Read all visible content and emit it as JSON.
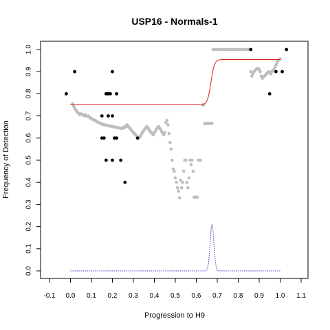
{
  "chart_data": {
    "type": "scatter",
    "title": "USP16 - Normals-1",
    "xlabel": "Progression to H9",
    "ylabel": "Frequency of Detection",
    "xlim": [
      -0.1,
      1.1
    ],
    "ylim": [
      0,
      1.0
    ],
    "x_ticks": [
      "-0.1",
      "0.0",
      "0.1",
      "0.2",
      "0.3",
      "0.4",
      "0.5",
      "0.6",
      "0.7",
      "0.8",
      "0.9",
      "1.0",
      "1.1"
    ],
    "y_ticks": [
      "0.0",
      "0.1",
      "0.2",
      "0.3",
      "0.4",
      "0.5",
      "0.6",
      "0.7",
      "0.8",
      "0.9",
      "1.0"
    ],
    "grid": false,
    "series": [
      {
        "kind": "points-black",
        "color": "#000000",
        "points": [
          [
            -0.02,
            0.8
          ],
          [
            0.02,
            0.9
          ],
          [
            0.15,
            0.7
          ],
          [
            0.15,
            0.6
          ],
          [
            0.16,
            0.6
          ],
          [
            0.17,
            0.8
          ],
          [
            0.17,
            0.5
          ],
          [
            0.18,
            0.8
          ],
          [
            0.18,
            0.7
          ],
          [
            0.19,
            0.8
          ],
          [
            0.2,
            0.9
          ],
          [
            0.2,
            0.7
          ],
          [
            0.2,
            0.5
          ],
          [
            0.21,
            0.6
          ],
          [
            0.22,
            0.8
          ],
          [
            0.22,
            0.6
          ],
          [
            0.24,
            0.5
          ],
          [
            0.26,
            0.4
          ],
          [
            0.32,
            0.6
          ],
          [
            0.86,
            1.0
          ],
          [
            0.95,
            0.8
          ],
          [
            0.98,
            0.9
          ],
          [
            1.01,
            0.9
          ],
          [
            1.03,
            1.0
          ]
        ]
      },
      {
        "kind": "points-gray",
        "color": "#bebebe",
        "points": [
          [
            0.01,
            0.755
          ],
          [
            0.015,
            0.745
          ],
          [
            0.02,
            0.735
          ],
          [
            0.025,
            0.728
          ],
          [
            0.03,
            0.72
          ],
          [
            0.035,
            0.715
          ],
          [
            0.04,
            0.71
          ],
          [
            0.045,
            0.705
          ],
          [
            0.05,
            0.71
          ],
          [
            0.055,
            0.708
          ],
          [
            0.06,
            0.705
          ],
          [
            0.065,
            0.7
          ],
          [
            0.07,
            0.705
          ],
          [
            0.075,
            0.7
          ],
          [
            0.08,
            0.698
          ],
          [
            0.085,
            0.7
          ],
          [
            0.09,
            0.695
          ],
          [
            0.095,
            0.69
          ],
          [
            0.1,
            0.688
          ],
          [
            0.105,
            0.685
          ],
          [
            0.11,
            0.682
          ],
          [
            0.115,
            0.68
          ],
          [
            0.12,
            0.678
          ],
          [
            0.125,
            0.675
          ],
          [
            0.13,
            0.672
          ],
          [
            0.135,
            0.67
          ],
          [
            0.14,
            0.668
          ],
          [
            0.145,
            0.665
          ],
          [
            0.15,
            0.663
          ],
          [
            0.155,
            0.662
          ],
          [
            0.16,
            0.66
          ],
          [
            0.165,
            0.659
          ],
          [
            0.17,
            0.658
          ],
          [
            0.175,
            0.657
          ],
          [
            0.18,
            0.656
          ],
          [
            0.185,
            0.655
          ],
          [
            0.19,
            0.654
          ],
          [
            0.195,
            0.653
          ],
          [
            0.2,
            0.652
          ],
          [
            0.205,
            0.651
          ],
          [
            0.21,
            0.65
          ],
          [
            0.215,
            0.649
          ],
          [
            0.22,
            0.648
          ],
          [
            0.225,
            0.647
          ],
          [
            0.23,
            0.646
          ],
          [
            0.235,
            0.645
          ],
          [
            0.24,
            0.644
          ],
          [
            0.245,
            0.643
          ],
          [
            0.25,
            0.645
          ],
          [
            0.255,
            0.65
          ],
          [
            0.26,
            0.648
          ],
          [
            0.265,
            0.655
          ],
          [
            0.27,
            0.66
          ],
          [
            0.275,
            0.652
          ],
          [
            0.28,
            0.648
          ],
          [
            0.285,
            0.642
          ],
          [
            0.29,
            0.636
          ],
          [
            0.295,
            0.63
          ],
          [
            0.3,
            0.625
          ],
          [
            0.305,
            0.62
          ],
          [
            0.31,
            0.615
          ],
          [
            0.315,
            0.61
          ],
          [
            0.32,
            0.605
          ],
          [
            0.325,
            0.6
          ],
          [
            0.33,
            0.605
          ],
          [
            0.335,
            0.61
          ],
          [
            0.34,
            0.62
          ],
          [
            0.345,
            0.628
          ],
          [
            0.35,
            0.635
          ],
          [
            0.355,
            0.642
          ],
          [
            0.36,
            0.648
          ],
          [
            0.365,
            0.652
          ],
          [
            0.37,
            0.645
          ],
          [
            0.375,
            0.638
          ],
          [
            0.38,
            0.63
          ],
          [
            0.385,
            0.625
          ],
          [
            0.39,
            0.62
          ],
          [
            0.395,
            0.615
          ],
          [
            0.4,
            0.625
          ],
          [
            0.405,
            0.632
          ],
          [
            0.41,
            0.64
          ],
          [
            0.415,
            0.646
          ],
          [
            0.42,
            0.652
          ],
          [
            0.425,
            0.645
          ],
          [
            0.43,
            0.638
          ],
          [
            0.435,
            0.63
          ],
          [
            0.44,
            0.62
          ],
          [
            0.445,
            0.615
          ],
          [
            0.45,
            0.625
          ],
          [
            0.455,
            0.67
          ],
          [
            0.46,
            0.68
          ],
          [
            0.465,
            0.66
          ],
          [
            0.47,
            0.62
          ],
          [
            0.475,
            0.58
          ],
          [
            0.48,
            0.55
          ],
          [
            0.485,
            0.5
          ],
          [
            0.49,
            0.46
          ],
          [
            0.495,
            0.45
          ],
          [
            0.5,
            0.42
          ],
          [
            0.505,
            0.4
          ],
          [
            0.51,
            0.375
          ],
          [
            0.515,
            0.36
          ],
          [
            0.52,
            0.33
          ],
          [
            0.525,
            0.41
          ],
          [
            0.53,
            0.375
          ],
          [
            0.535,
            0.4
          ],
          [
            0.54,
            0.45
          ],
          [
            0.545,
            0.5
          ],
          [
            0.55,
            0.5
          ],
          [
            0.555,
            0.4
          ],
          [
            0.56,
            0.375
          ],
          [
            0.565,
            0.42
          ],
          [
            0.57,
            0.5
          ],
          [
            0.575,
            0.48
          ],
          [
            0.58,
            0.5
          ],
          [
            0.585,
            0.45
          ],
          [
            0.59,
            0.333
          ],
          [
            0.595,
            0.333
          ],
          [
            0.6,
            0.333
          ],
          [
            0.605,
            0.333
          ],
          [
            0.61,
            0.5
          ],
          [
            0.615,
            0.5
          ],
          [
            0.62,
            0.5
          ],
          [
            0.63,
            0.75
          ],
          [
            0.635,
            0.75
          ],
          [
            0.64,
            0.666
          ],
          [
            0.645,
            0.666
          ],
          [
            0.65,
            0.666
          ],
          [
            0.655,
            0.666
          ],
          [
            0.66,
            0.666
          ],
          [
            0.665,
            0.666
          ],
          [
            0.67,
            0.666
          ],
          [
            0.675,
            0.666
          ],
          [
            0.68,
            1.0
          ],
          [
            0.69,
            1.0
          ],
          [
            0.7,
            1.0
          ],
          [
            0.71,
            1.0
          ],
          [
            0.72,
            1.0
          ],
          [
            0.73,
            1.0
          ],
          [
            0.74,
            1.0
          ],
          [
            0.75,
            1.0
          ],
          [
            0.76,
            1.0
          ],
          [
            0.77,
            1.0
          ],
          [
            0.78,
            1.0
          ],
          [
            0.79,
            1.0
          ],
          [
            0.8,
            1.0
          ],
          [
            0.81,
            1.0
          ],
          [
            0.82,
            1.0
          ],
          [
            0.83,
            1.0
          ],
          [
            0.84,
            1.0
          ],
          [
            0.85,
            1.0
          ],
          [
            0.86,
            0.9
          ],
          [
            0.865,
            0.88
          ],
          [
            0.87,
            0.89
          ],
          [
            0.875,
            0.9
          ],
          [
            0.88,
            0.905
          ],
          [
            0.885,
            0.91
          ],
          [
            0.89,
            0.912
          ],
          [
            0.895,
            0.915
          ],
          [
            0.9,
            0.91
          ],
          [
            0.905,
            0.9
          ],
          [
            0.91,
            0.88
          ],
          [
            0.915,
            0.87
          ],
          [
            0.92,
            0.875
          ],
          [
            0.925,
            0.88
          ],
          [
            0.93,
            0.885
          ],
          [
            0.935,
            0.89
          ],
          [
            0.94,
            0.895
          ],
          [
            0.945,
            0.9
          ],
          [
            0.95,
            0.895
          ],
          [
            0.955,
            0.89
          ],
          [
            0.96,
            0.9
          ],
          [
            0.965,
            0.905
          ],
          [
            0.97,
            0.91
          ],
          [
            0.975,
            0.92
          ],
          [
            0.98,
            0.93
          ],
          [
            0.985,
            0.94
          ],
          [
            0.99,
            0.95
          ],
          [
            0.995,
            0.955
          ],
          [
            1.0,
            0.957
          ]
        ]
      },
      {
        "kind": "sigmoid-fit",
        "color": "#e41a1c",
        "line_style": "solid",
        "x_from": 0.0,
        "x_to": 1.0,
        "low": 0.75,
        "high": 0.955,
        "midpoint": 0.67,
        "steepness": 120
      },
      {
        "kind": "density",
        "color": "#3333cc",
        "line_style": "dotted",
        "x_from": 0.0,
        "x_to": 1.0,
        "baseline": 0.0,
        "peak": 0.21,
        "center": 0.675,
        "spread": 0.009
      }
    ]
  }
}
